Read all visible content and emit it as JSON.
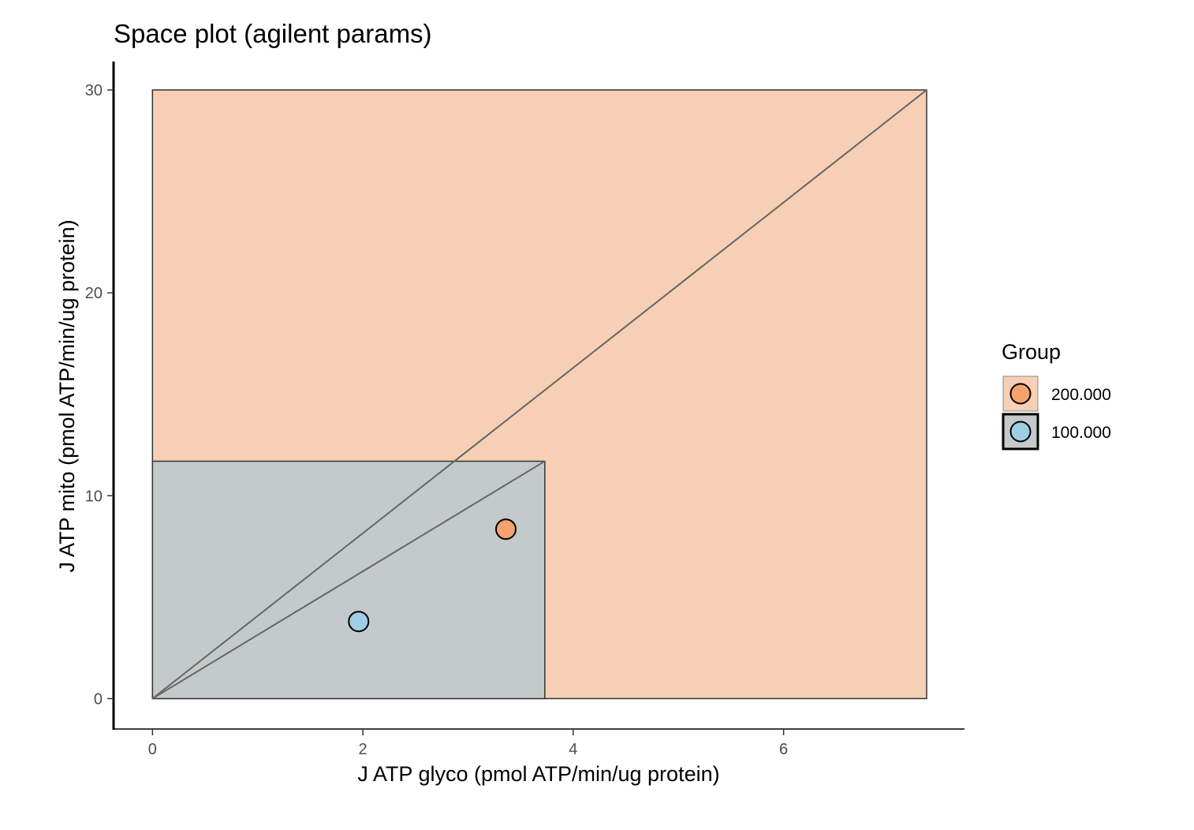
{
  "chart_data": {
    "type": "scatter",
    "title": "Space plot (agilent params)",
    "xlabel": "J ATP glyco (pmol ATP/min/ug protein)",
    "ylabel": "J ATP mito (pmol ATP/min/ug protein)",
    "xlim": [
      -0.37,
      7.72
    ],
    "ylim": [
      -1.5,
      31.4
    ],
    "x_ticks": [
      0,
      2,
      4,
      6
    ],
    "y_ticks": [
      0,
      10,
      20,
      30
    ],
    "grid": false,
    "legend": {
      "title": "Group",
      "position": "right"
    },
    "series": [
      {
        "name": "200.000",
        "fill_color": "#f4a26e",
        "region_color": "#f7cfb5",
        "region": {
          "x": [
            0,
            7.36
          ],
          "y": [
            0,
            30
          ]
        },
        "points": [
          {
            "x": 3.36,
            "y": 8.35
          }
        ]
      },
      {
        "name": "100.000",
        "fill_color": "#9ecde4",
        "region_color": "#c4cac9",
        "region": {
          "x": [
            0,
            3.73
          ],
          "y": [
            0,
            11.7
          ]
        },
        "points": [
          {
            "x": 1.96,
            "y": 3.8
          }
        ]
      }
    ],
    "lines": [
      {
        "from": [
          0,
          0
        ],
        "to": [
          7.36,
          30
        ]
      },
      {
        "from": [
          0,
          0
        ],
        "to": [
          3.73,
          11.7
        ]
      }
    ]
  }
}
